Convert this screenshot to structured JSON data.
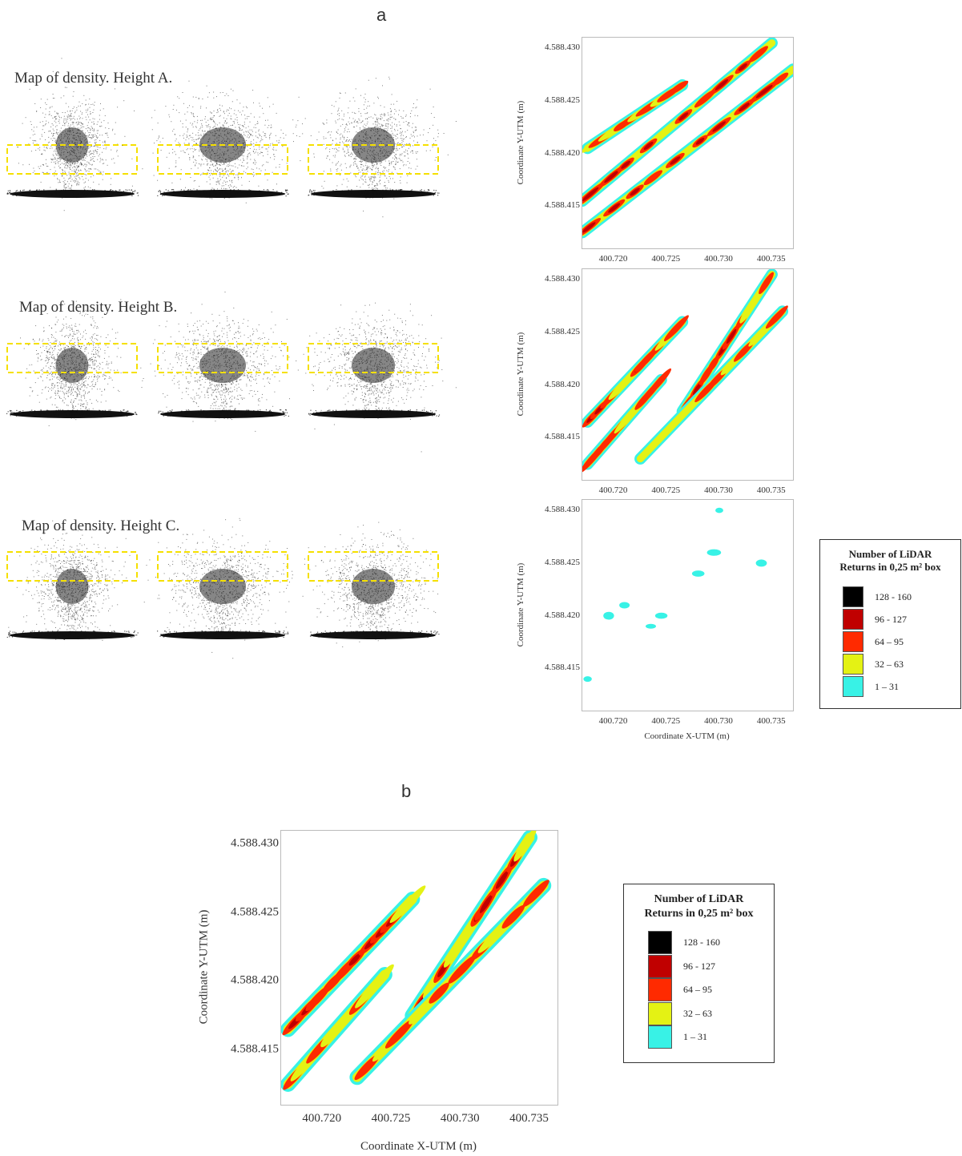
{
  "figure": {
    "panel_a_label": "a",
    "panel_b_label": "b"
  },
  "density_maps": {
    "rows": [
      {
        "title": "Map of density.  Height A.",
        "band": "middle"
      },
      {
        "title": "Map of density.  Height B.",
        "band": "upper"
      },
      {
        "title": "Map of density.  Height C.",
        "band": "top"
      }
    ],
    "band_color": "#f5e000"
  },
  "axes": {
    "xlabel": "Coordinate X-UTM (m)",
    "ylabel": "Coordinate Y-UTM (m)",
    "x_ticks": [
      "400.720",
      "400.725",
      "400.730",
      "400.735"
    ],
    "y_ticks": [
      "4.588.430",
      "4.588.425",
      "4.588.420",
      "4.588.415"
    ]
  },
  "legend": {
    "title_line1": "Number of LiDAR",
    "title_line2": "Returns in 0,25 m² box",
    "classes": [
      {
        "label": "128 - 160",
        "color": "#000000"
      },
      {
        "label": "96 - 127",
        "color": "#c00000"
      },
      {
        "label": "64 – 95",
        "color": "#ff2a00"
      },
      {
        "label": "32 – 63",
        "color": "#e4f214"
      },
      {
        "label": "1 – 31",
        "color": "#38f2e6"
      }
    ]
  },
  "chart_data": [
    {
      "type": "heatmap",
      "id": "height-A",
      "xlim": [
        400.717,
        400.737
      ],
      "ylim": [
        4588.411,
        4588.431
      ],
      "xlabel": "",
      "ylabel": "Coordinate Y-UTM (m)",
      "rows": [
        {
          "x1": 400.717,
          "y1": 4588.4125,
          "x2": 400.737,
          "y2": 4588.428,
          "level": 4
        },
        {
          "x1": 400.717,
          "y1": 4588.4155,
          "x2": 400.735,
          "y2": 4588.4305,
          "level": 4
        },
        {
          "x1": 400.7175,
          "y1": 4588.4205,
          "x2": 400.7265,
          "y2": 4588.4265,
          "level": 3
        }
      ]
    },
    {
      "type": "heatmap",
      "id": "height-B",
      "xlim": [
        400.717,
        400.737
      ],
      "ylim": [
        4588.411,
        4588.431
      ],
      "xlabel": "",
      "ylabel": "Coordinate Y-UTM (m)",
      "rows": [
        {
          "x1": 400.7175,
          "y1": 4588.4165,
          "x2": 400.7265,
          "y2": 4588.426,
          "level": 4
        },
        {
          "x1": 400.7175,
          "y1": 4588.4125,
          "x2": 400.7245,
          "y2": 4588.4205,
          "level": 3
        },
        {
          "x1": 400.7265,
          "y1": 4588.4175,
          "x2": 400.735,
          "y2": 4588.4305,
          "level": 4
        },
        {
          "x1": 400.7225,
          "y1": 4588.413,
          "x2": 400.736,
          "y2": 4588.427,
          "level": 3
        }
      ]
    },
    {
      "type": "heatmap",
      "id": "height-C",
      "xlim": [
        400.717,
        400.737
      ],
      "ylim": [
        4588.411,
        4588.431
      ],
      "xlabel": "Coordinate X-UTM (m)",
      "ylabel": "Coordinate Y-UTM (m)",
      "patches": [
        {
          "x": 400.7195,
          "y": 4588.42,
          "level": 1
        },
        {
          "x": 400.721,
          "y": 4588.421,
          "level": 1
        },
        {
          "x": 400.7235,
          "y": 4588.419,
          "level": 1
        },
        {
          "x": 400.7245,
          "y": 4588.42,
          "level": 1
        },
        {
          "x": 400.728,
          "y": 4588.424,
          "level": 1
        },
        {
          "x": 400.7295,
          "y": 4588.426,
          "level": 1
        },
        {
          "x": 400.73,
          "y": 4588.43,
          "level": 1
        },
        {
          "x": 400.734,
          "y": 4588.425,
          "level": 1
        },
        {
          "x": 400.7175,
          "y": 4588.414,
          "level": 1
        }
      ]
    }
  ],
  "chart_b": {
    "type": "heatmap",
    "id": "panel-b",
    "xlim": [
      400.717,
      400.737
    ],
    "ylim": [
      4588.411,
      4588.431
    ],
    "xlabel": "Coordinate X-UTM (m)",
    "ylabel": "Coordinate Y-UTM (m)"
  }
}
